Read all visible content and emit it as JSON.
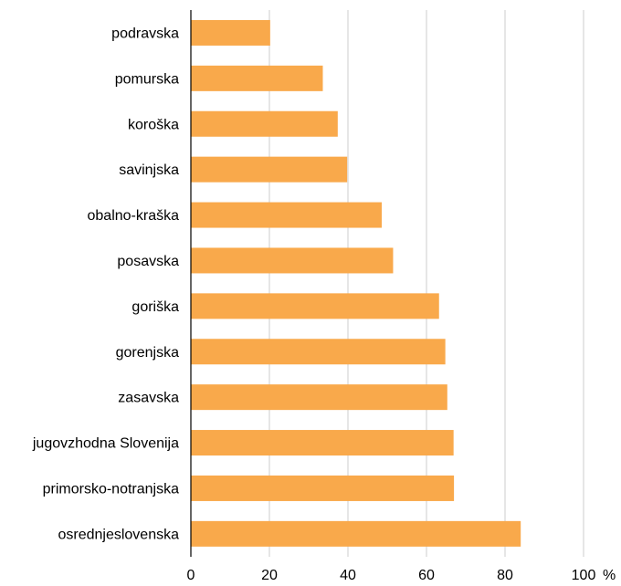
{
  "chart_data": {
    "type": "bar",
    "orientation": "horizontal",
    "categories": [
      "podravska",
      "pomurska",
      "koroška",
      "savinjska",
      "obalno-kraška",
      "posavska",
      "goriška",
      "gorenjska",
      "zasavska",
      "jugovzhodna Slovenija",
      "primorsko-notranjska",
      "osrednjeslovenska"
    ],
    "values": [
      20.2,
      33.6,
      37.4,
      39.8,
      48.6,
      51.5,
      63.2,
      64.8,
      65.3,
      66.9,
      67.0,
      84.0
    ],
    "title": "",
    "xlabel": "",
    "ylabel": "",
    "xlim": [
      0,
      100
    ],
    "xticks": [
      "0",
      "20",
      "40",
      "60",
      "80",
      "100"
    ],
    "x_unit": "%",
    "grid": "vertical",
    "legend": "none",
    "bar_color": "#F9A94B",
    "grid_color": "#CCCCCC",
    "axis_color": "#000000",
    "text_color": "#000000"
  }
}
